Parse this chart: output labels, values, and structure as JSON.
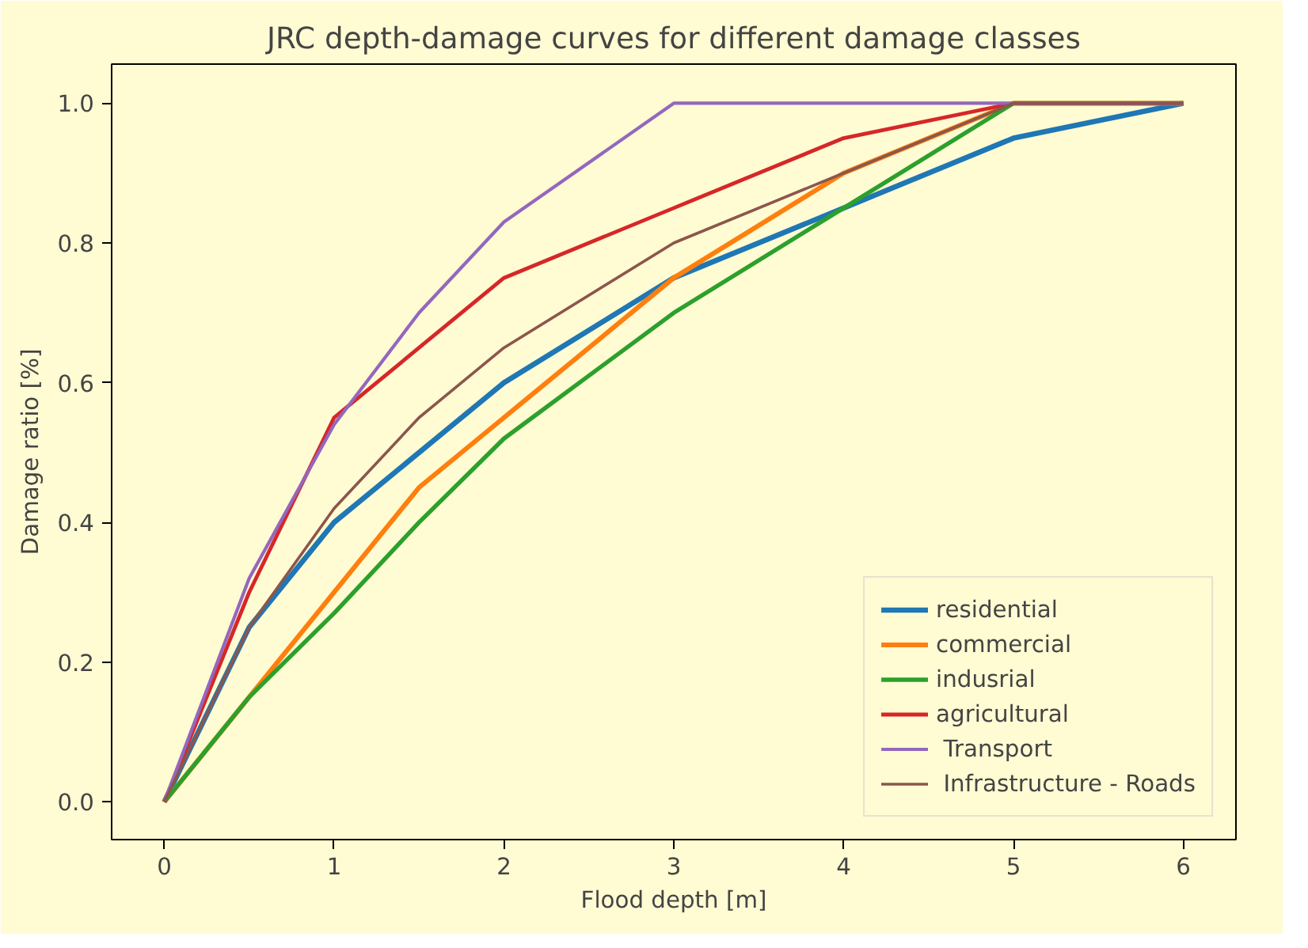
{
  "chart_data": {
    "type": "line",
    "title": "JRC depth-damage curves for different damage classes",
    "xlabel": "Flood depth [m]",
    "ylabel": "Damage ratio [%]",
    "x": [
      0,
      0.5,
      1,
      1.5,
      2,
      3,
      4,
      5,
      6
    ],
    "series": [
      {
        "name": "residential",
        "color": "#1f77b4",
        "values": [
          0,
          0.25,
          0.4,
          0.5,
          0.6,
          0.75,
          0.85,
          0.95,
          1.0
        ]
      },
      {
        "name": "commercial",
        "color": "#ff7f0e",
        "values": [
          0,
          0.15,
          0.3,
          0.45,
          0.55,
          0.75,
          0.9,
          1.0,
          1.0
        ]
      },
      {
        "name": "indusrial",
        "color": "#2ca02c",
        "values": [
          0,
          0.15,
          0.27,
          0.4,
          0.52,
          0.7,
          0.85,
          1.0,
          1.0
        ]
      },
      {
        "name": "agricultural",
        "color": "#d62728",
        "values": [
          0,
          0.3,
          0.55,
          0.65,
          0.75,
          0.85,
          0.95,
          1.0,
          1.0
        ]
      },
      {
        "name": " Transport",
        "color": "#9467bd",
        "values": [
          0,
          0.32,
          0.54,
          0.7,
          0.83,
          1.0,
          1.0,
          1.0,
          1.0
        ]
      },
      {
        "name": " Infrastructure - Roads",
        "color": "#8c564b",
        "values": [
          0,
          0.25,
          0.42,
          0.55,
          0.65,
          0.8,
          0.9,
          1.0,
          1.0
        ]
      }
    ],
    "xlim": [
      -0.31,
      6.31
    ],
    "ylim": [
      -0.054,
      1.056
    ],
    "xticks": [
      0,
      1,
      2,
      3,
      4,
      5,
      6
    ],
    "yticks": [
      {
        "value": 0,
        "label": "0.0"
      },
      {
        "value": 0.2,
        "label": "0.2"
      },
      {
        "value": 0.4,
        "label": "0.4"
      },
      {
        "value": 0.6,
        "label": "0.6"
      },
      {
        "value": 0.8,
        "label": "0.8"
      },
      {
        "value": 1.0,
        "label": "1.0"
      }
    ],
    "grid": false,
    "legend": "bottom right",
    "marker": "none",
    "line_style": "solid"
  }
}
